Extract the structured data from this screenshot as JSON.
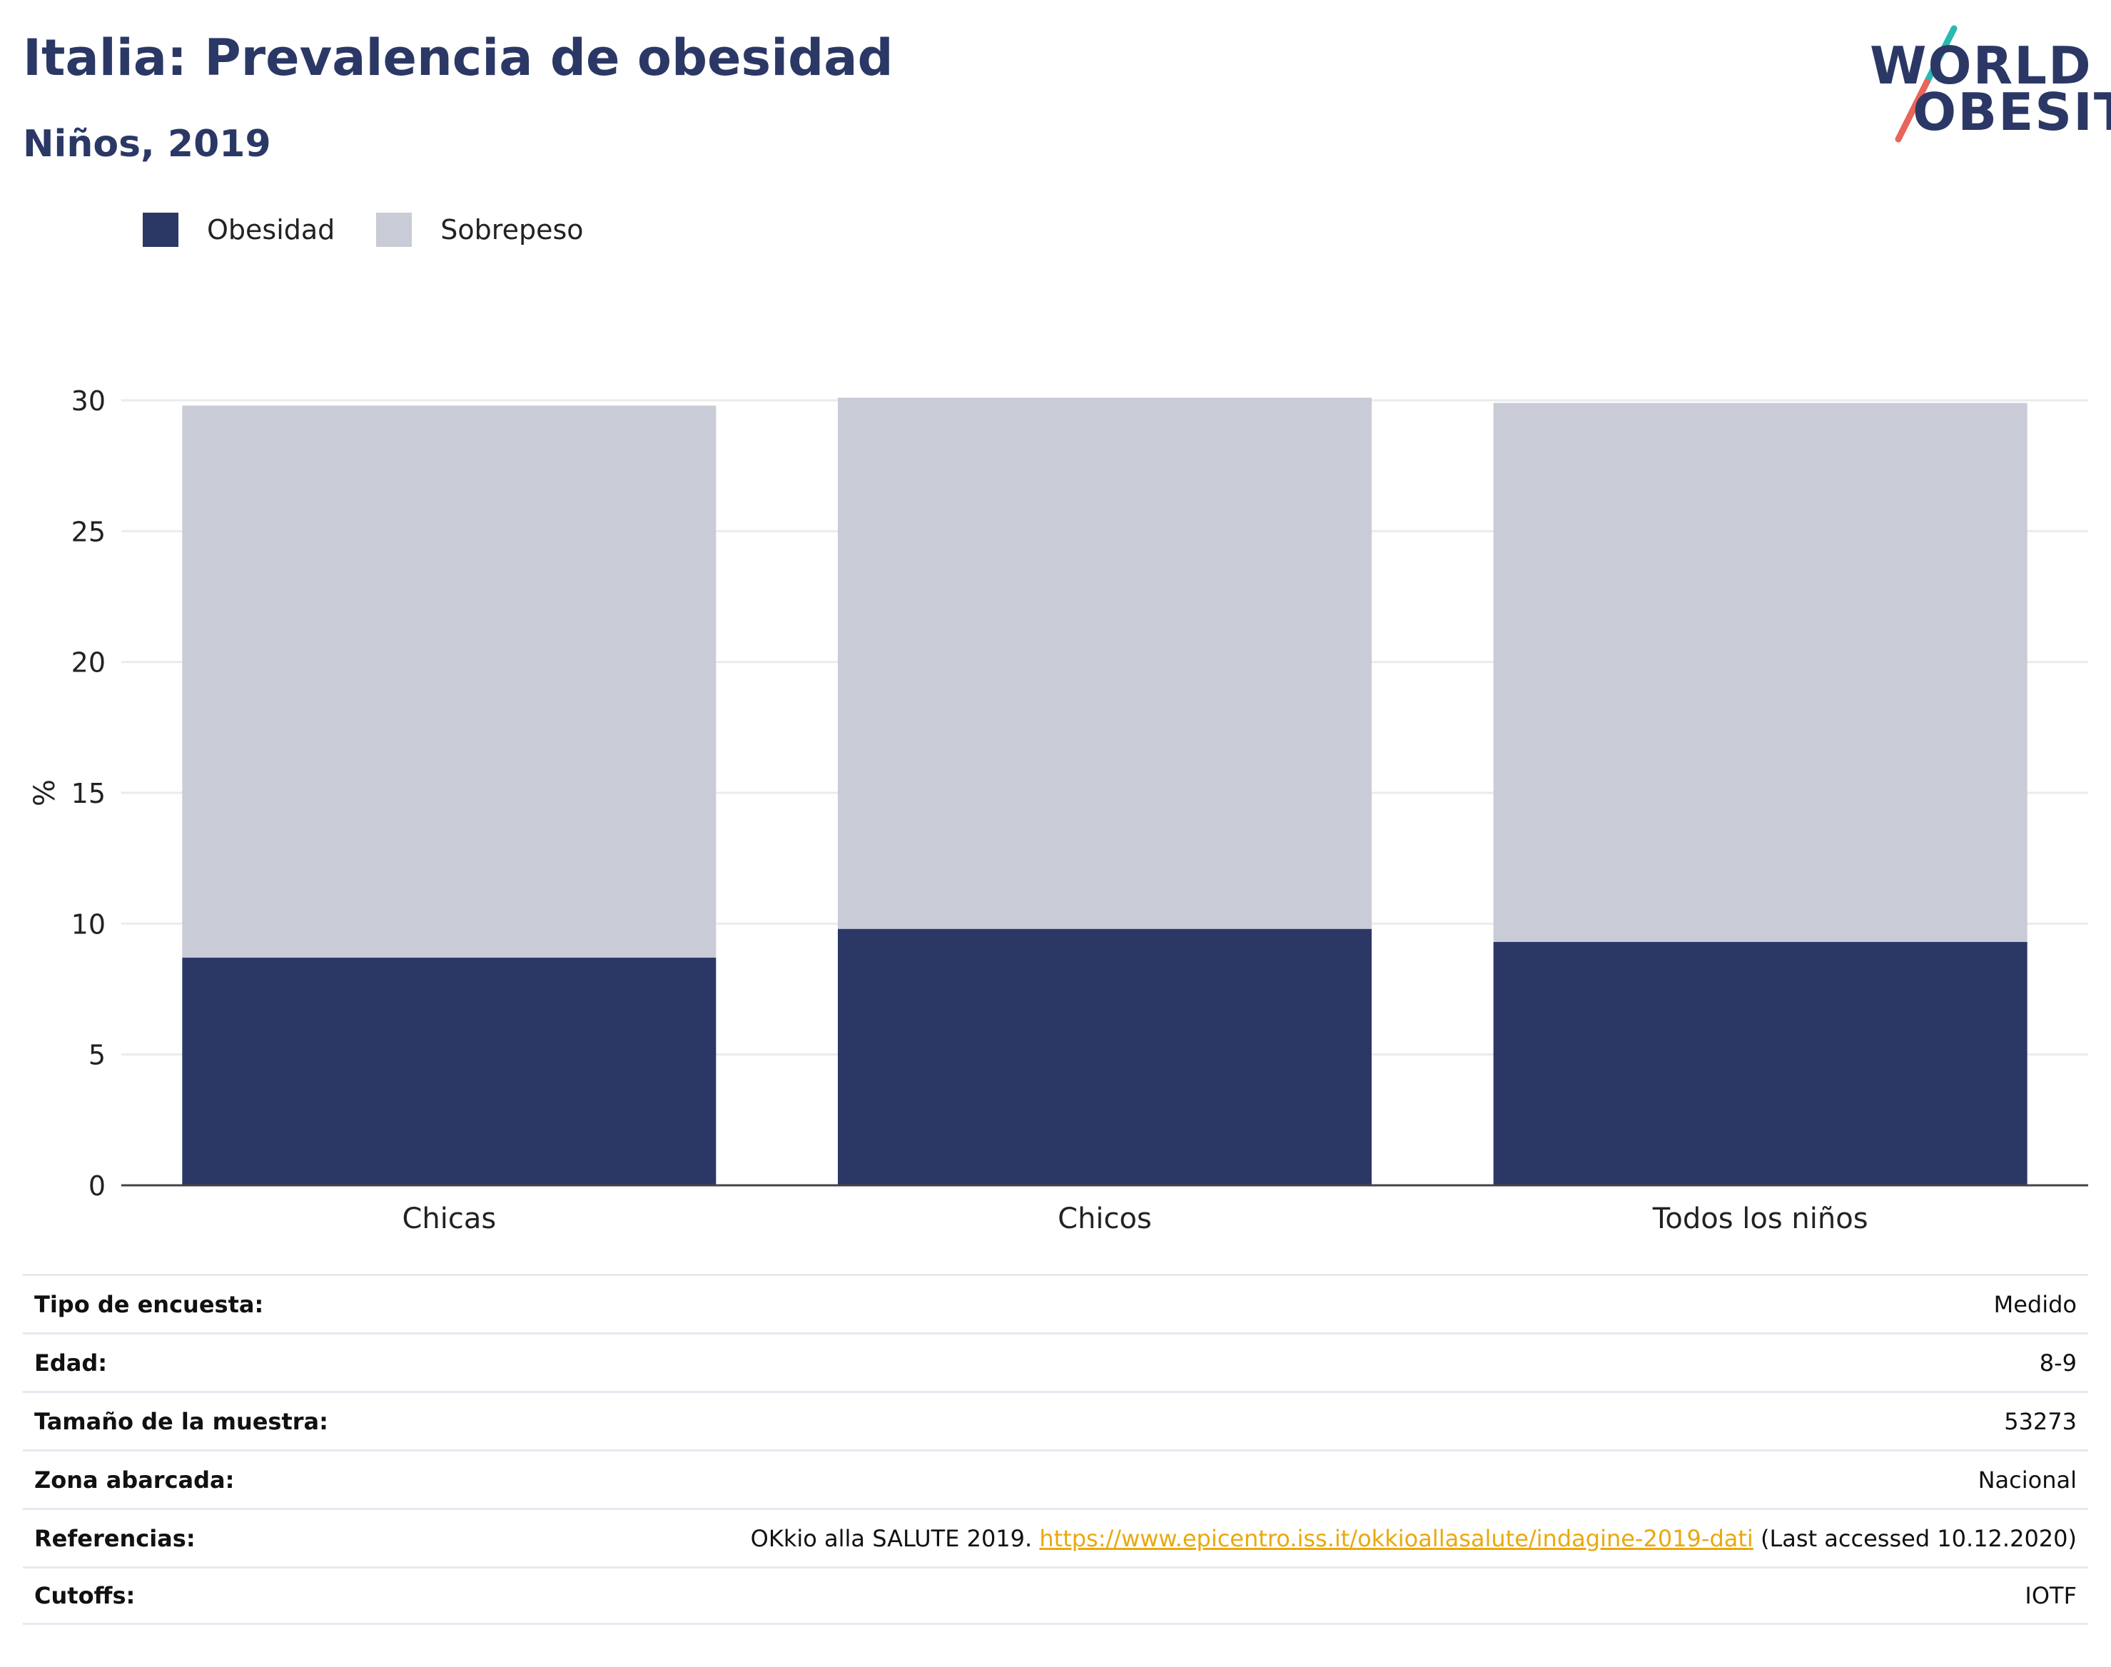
{
  "header": {
    "title": "Italia: Prevalencia de obesidad",
    "subtitle": "Niños, 2019"
  },
  "logo": {
    "line1": "WORLD",
    "line2": "OBESITY",
    "colors": {
      "text": "#2b3866",
      "slash_top": "#2ab8b4",
      "slash_bottom": "#e8655a"
    }
  },
  "legend": [
    {
      "label": "Obesidad",
      "color": "#2b3866"
    },
    {
      "label": "Sobrepeso",
      "color": "#c9cbd6"
    }
  ],
  "chart_data": {
    "type": "bar",
    "stacked": true,
    "categories": [
      "Chicas",
      "Chicos",
      "Todos los niños"
    ],
    "series": [
      {
        "name": "Obesidad",
        "color": "#2b3866",
        "values": [
          8.7,
          9.8,
          9.3
        ]
      },
      {
        "name": "Sobrepeso",
        "color": "#c9cbd6",
        "values": [
          21.1,
          20.3,
          20.6
        ]
      }
    ],
    "ylabel": "%",
    "ylim": [
      0,
      30
    ],
    "yticks": [
      0,
      5,
      10,
      15,
      20,
      25,
      30
    ],
    "grid": true,
    "legend_position": "top-left"
  },
  "info": [
    {
      "key": "Tipo de encuesta:",
      "value": "Medido"
    },
    {
      "key": "Edad:",
      "value": "8-9"
    },
    {
      "key": "Tamaño de la muestra:",
      "value": "53273"
    },
    {
      "key": "Zona abarcada:",
      "value": "Nacional"
    },
    {
      "key": "Referencias:",
      "value_prefix": "OKkio alla SALUTE 2019. ",
      "link": "https://www.epicentro.iss.it/okkioallasalute/indagine-2019-dati",
      "value_suffix": " (Last accessed 10.12.2020)"
    },
    {
      "key": "Cutoffs:",
      "value": "IOTF"
    }
  ]
}
